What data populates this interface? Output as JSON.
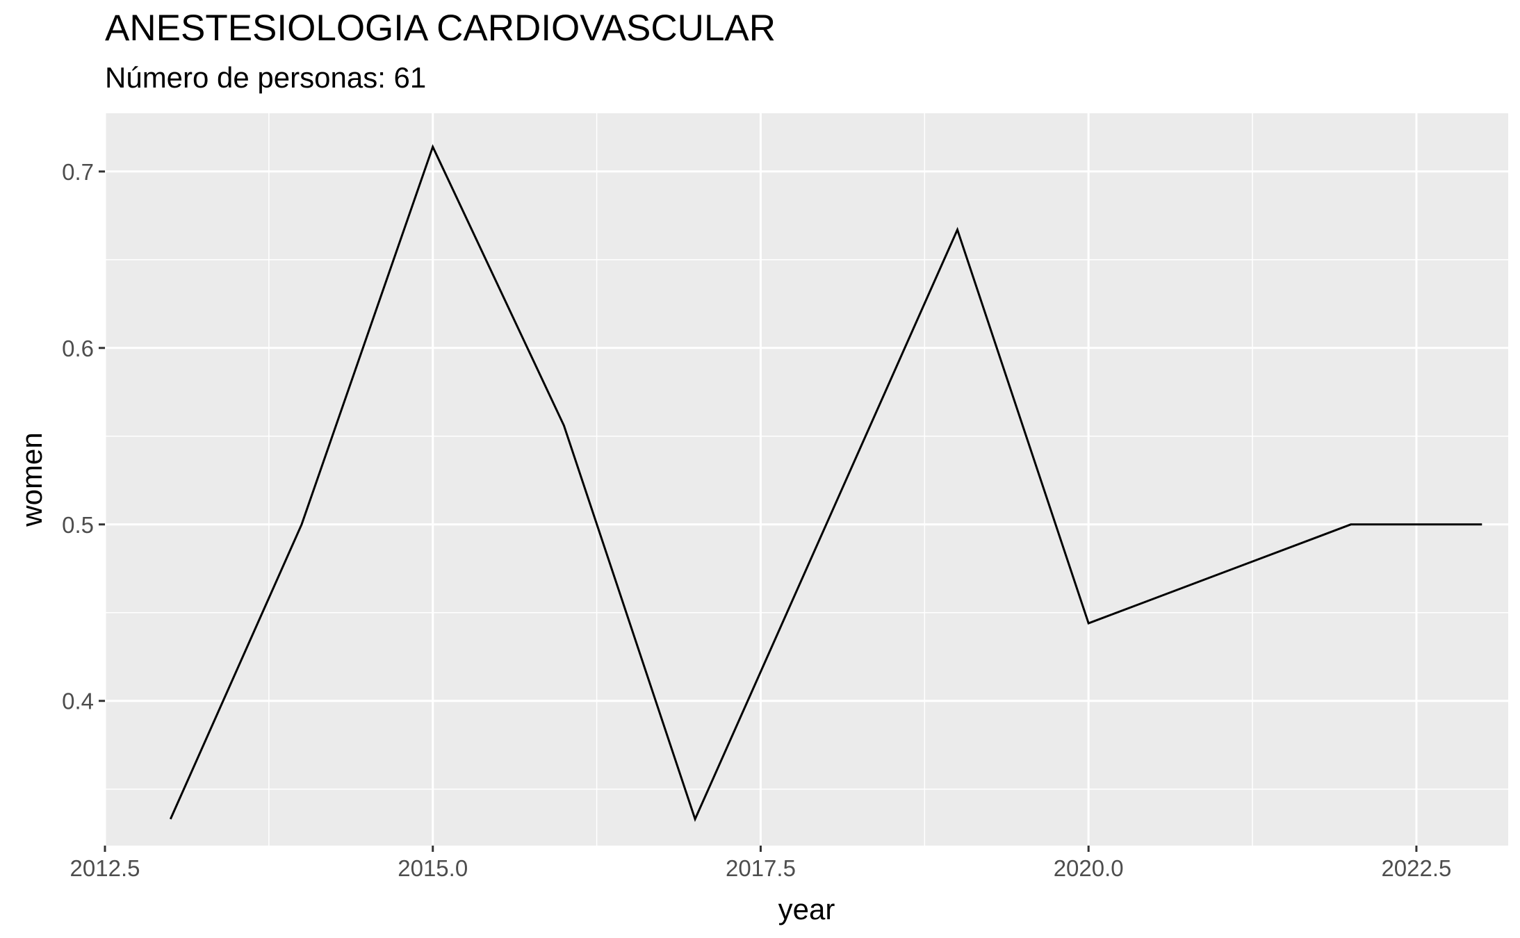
{
  "chart_data": {
    "type": "line",
    "title": "ANESTESIOLOGIA CARDIOVASCULAR",
    "subtitle": "Número de personas: 61",
    "xlabel": "year",
    "ylabel": "women",
    "xlim": [
      2012.5,
      2023.2
    ],
    "ylim": [
      0.318,
      0.733
    ],
    "x_ticks": [
      2012.5,
      2015.0,
      2017.5,
      2020.0,
      2022.5
    ],
    "x_tick_labels": [
      "2012.5",
      "2015.0",
      "2017.5",
      "2020.0",
      "2022.5"
    ],
    "y_ticks": [
      0.4,
      0.5,
      0.6,
      0.7
    ],
    "y_tick_labels": [
      "0.4",
      "0.5",
      "0.6",
      "0.7"
    ],
    "grid": true,
    "series": [
      {
        "name": "women",
        "color": "#000000",
        "x": [
          2013,
          2014,
          2015,
          2016,
          2017,
          2018,
          2019,
          2020,
          2021,
          2022,
          2023
        ],
        "y": [
          0.333,
          0.5,
          0.714,
          0.556,
          0.333,
          0.5,
          0.667,
          0.444,
          0.472,
          0.5,
          0.5
        ]
      }
    ]
  },
  "colors": {
    "panel_background": "#ebebeb",
    "grid_major": "#ffffff",
    "tick_text": "#4d4d4d",
    "line": "#000000"
  }
}
